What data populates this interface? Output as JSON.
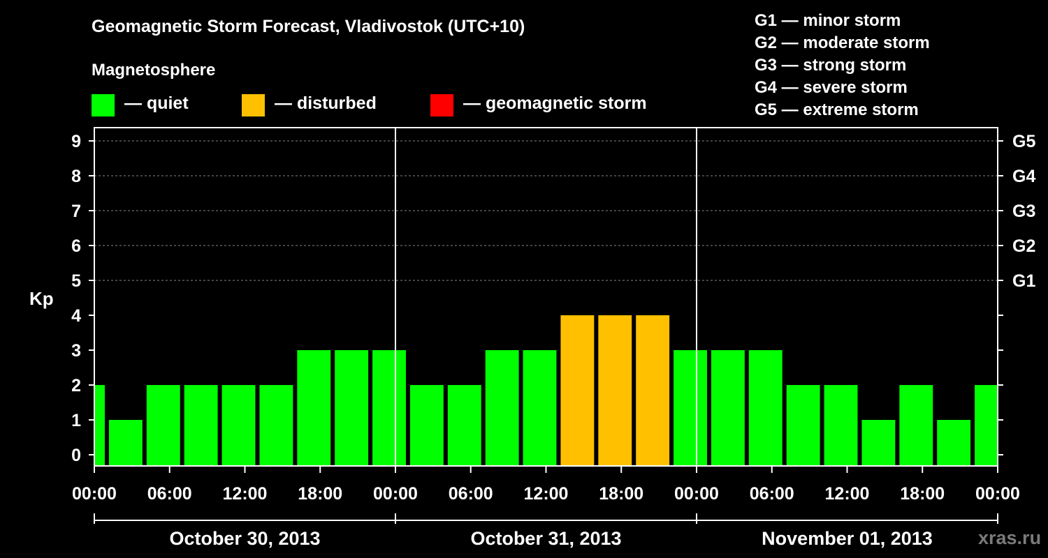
{
  "title": "Geomagnetic Storm Forecast, Vladivostok (UTC+10)",
  "legend": {
    "heading": "Magnetosphere",
    "items": [
      {
        "label": "— quiet",
        "color": "#00FF00"
      },
      {
        "label": "— disturbed",
        "color": "#FFC000"
      },
      {
        "label": "— geomagnetic storm",
        "color": "#FF0000"
      }
    ]
  },
  "storm_scale": [
    "G1 — minor storm",
    "G2 — moderate storm",
    "G3 — strong storm",
    "G4 — severe storm",
    "G5 — extreme storm"
  ],
  "watermark": "xras.ru",
  "chart_data": {
    "type": "bar",
    "ylabel": "Kp",
    "ylim": [
      0,
      9
    ],
    "y_ticks": [
      "0",
      "1",
      "2",
      "3",
      "4",
      "5",
      "6",
      "7",
      "8",
      "9"
    ],
    "right_axis_ticks": [
      {
        "kp": 5,
        "label": "G1"
      },
      {
        "kp": 6,
        "label": "G2"
      },
      {
        "kp": 7,
        "label": "G3"
      },
      {
        "kp": 8,
        "label": "G4"
      },
      {
        "kp": 9,
        "label": "G5"
      }
    ],
    "x_range_hours": [
      0,
      72
    ],
    "x_ticks": [
      {
        "hour": 0,
        "label": "00:00"
      },
      {
        "hour": 6,
        "label": "06:00"
      },
      {
        "hour": 12,
        "label": "12:00"
      },
      {
        "hour": 18,
        "label": "18:00"
      },
      {
        "hour": 24,
        "label": "00:00"
      },
      {
        "hour": 30,
        "label": "06:00"
      },
      {
        "hour": 36,
        "label": "12:00"
      },
      {
        "hour": 42,
        "label": "18:00"
      },
      {
        "hour": 48,
        "label": "00:00"
      },
      {
        "hour": 54,
        "label": "06:00"
      },
      {
        "hour": 60,
        "label": "12:00"
      },
      {
        "hour": 66,
        "label": "18:00"
      },
      {
        "hour": 72,
        "label": "00:00"
      }
    ],
    "days": [
      {
        "label": "October 30, 2013",
        "start_hour": 0,
        "end_hour": 24
      },
      {
        "label": "October 31, 2013",
        "start_hour": 24,
        "end_hour": 48
      },
      {
        "label": "November 01, 2013",
        "start_hour": 48,
        "end_hour": 72
      }
    ],
    "bars": [
      {
        "start_hour": 0,
        "end_hour": 1,
        "kp": 2,
        "status": "quiet"
      },
      {
        "start_hour": 1,
        "end_hour": 4,
        "kp": 1,
        "status": "quiet"
      },
      {
        "start_hour": 4,
        "end_hour": 7,
        "kp": 2,
        "status": "quiet"
      },
      {
        "start_hour": 7,
        "end_hour": 10,
        "kp": 2,
        "status": "quiet"
      },
      {
        "start_hour": 10,
        "end_hour": 13,
        "kp": 2,
        "status": "quiet"
      },
      {
        "start_hour": 13,
        "end_hour": 16,
        "kp": 2,
        "status": "quiet"
      },
      {
        "start_hour": 16,
        "end_hour": 19,
        "kp": 3,
        "status": "quiet"
      },
      {
        "start_hour": 19,
        "end_hour": 22,
        "kp": 3,
        "status": "quiet"
      },
      {
        "start_hour": 22,
        "end_hour": 25,
        "kp": 3,
        "status": "quiet"
      },
      {
        "start_hour": 25,
        "end_hour": 28,
        "kp": 2,
        "status": "quiet"
      },
      {
        "start_hour": 28,
        "end_hour": 31,
        "kp": 2,
        "status": "quiet"
      },
      {
        "start_hour": 31,
        "end_hour": 34,
        "kp": 3,
        "status": "quiet"
      },
      {
        "start_hour": 34,
        "end_hour": 37,
        "kp": 3,
        "status": "quiet"
      },
      {
        "start_hour": 37,
        "end_hour": 40,
        "kp": 4,
        "status": "disturbed"
      },
      {
        "start_hour": 40,
        "end_hour": 43,
        "kp": 4,
        "status": "disturbed"
      },
      {
        "start_hour": 43,
        "end_hour": 46,
        "kp": 4,
        "status": "disturbed"
      },
      {
        "start_hour": 46,
        "end_hour": 49,
        "kp": 3,
        "status": "quiet"
      },
      {
        "start_hour": 49,
        "end_hour": 52,
        "kp": 3,
        "status": "quiet"
      },
      {
        "start_hour": 52,
        "end_hour": 55,
        "kp": 3,
        "status": "quiet"
      },
      {
        "start_hour": 55,
        "end_hour": 58,
        "kp": 2,
        "status": "quiet"
      },
      {
        "start_hour": 58,
        "end_hour": 61,
        "kp": 2,
        "status": "quiet"
      },
      {
        "start_hour": 61,
        "end_hour": 64,
        "kp": 1,
        "status": "quiet"
      },
      {
        "start_hour": 64,
        "end_hour": 67,
        "kp": 2,
        "status": "quiet"
      },
      {
        "start_hour": 67,
        "end_hour": 70,
        "kp": 1,
        "status": "quiet"
      },
      {
        "start_hour": 70,
        "end_hour": 72,
        "kp": 2,
        "status": "quiet"
      }
    ],
    "status_colors": {
      "quiet": "#00FF00",
      "disturbed": "#FFC000",
      "storm": "#FF0000"
    }
  }
}
